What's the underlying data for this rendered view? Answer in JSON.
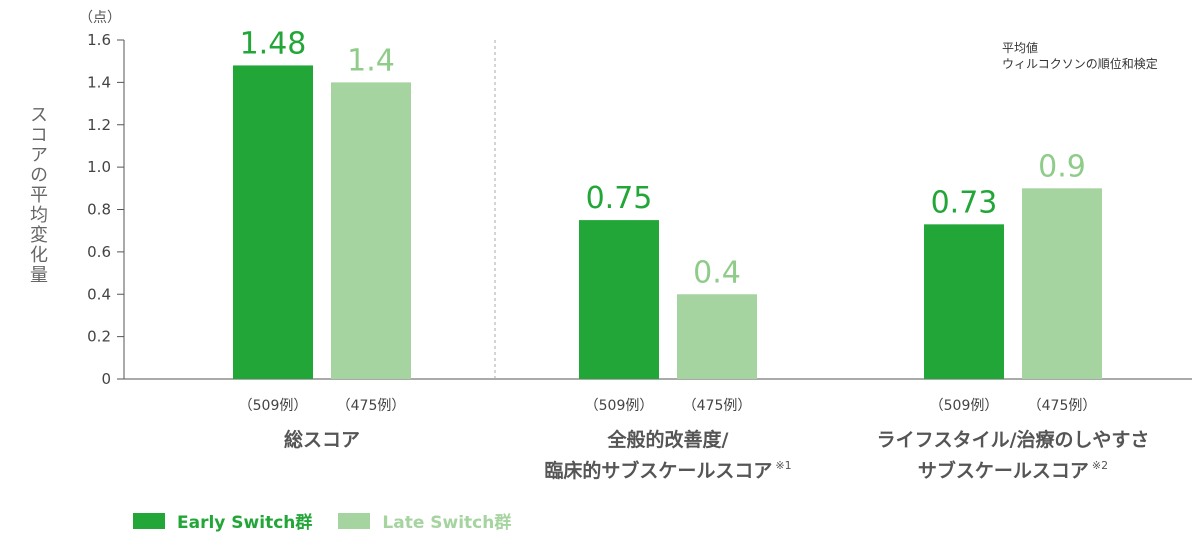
{
  "colors": {
    "early": "#22a637",
    "late": "#a6d4a0",
    "axis": "#555555",
    "category": "#555555"
  },
  "y_unit": "（点）",
  "y_axis_title": "スコアの平均変化量",
  "note": [
    "平均値",
    "ウィルコクソンの順位和検定"
  ],
  "legend": {
    "early": "Early Switch群",
    "late": "Late Switch群"
  },
  "chart_data": {
    "type": "bar",
    "categories": [
      "総スコア",
      "全般的改善度/臨床的サブスケールスコア",
      "ライフスタイル/治療のしやすさサブスケールスコア"
    ],
    "category_lines": [
      [
        {
          "text": "総スコア"
        }
      ],
      [
        {
          "text": "全般的改善度/"
        },
        {
          "text": "臨床的サブスケールスコア",
          "sup": "※1"
        }
      ],
      [
        {
          "text": "ライフスタイル/治療のしやすさ"
        },
        {
          "text": "サブスケールスコア",
          "sup": "※2"
        }
      ]
    ],
    "series": [
      {
        "name": "Early Switch群",
        "values": [
          1.48,
          0.75,
          0.73
        ],
        "labels": [
          "1.48",
          "0.75",
          "0.73"
        ],
        "n_label": "（509例）"
      },
      {
        "name": "Late Switch群",
        "values": [
          1.4,
          0.4,
          0.9
        ],
        "labels": [
          "1.4",
          "0.4",
          "0.9"
        ],
        "n_label": "（475例）"
      }
    ],
    "ylim": [
      0,
      1.6
    ],
    "yticks": [
      {
        "value": 0,
        "label": "0"
      },
      {
        "value": 0.2,
        "label": "0.2"
      },
      {
        "value": 0.4,
        "label": "0.4"
      },
      {
        "value": 0.6,
        "label": "0.6"
      },
      {
        "value": 0.8,
        "label": "0.8"
      },
      {
        "value": 1.0,
        "label": "1.0"
      },
      {
        "value": 1.2,
        "label": "1.2"
      },
      {
        "value": 1.4,
        "label": "1.4"
      },
      {
        "value": 1.6,
        "label": "1.6"
      }
    ],
    "ylabel": "スコアの平均変化量",
    "legend_position": "bottom-left",
    "grid": false
  }
}
